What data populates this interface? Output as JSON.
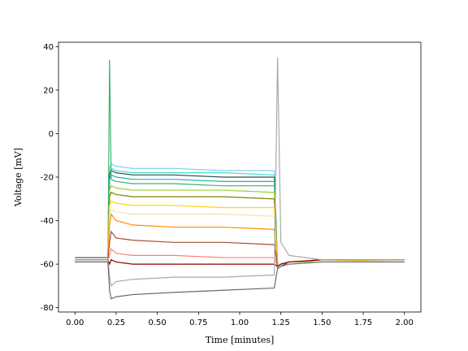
{
  "chart_data": {
    "type": "line",
    "xlabel": "Time [minutes]",
    "ylabel": "Voltage [mV]",
    "x": [
      0,
      0.2,
      0.21,
      0.22,
      0.25,
      0.35,
      0.6,
      0.9,
      1.2,
      1.21,
      1.23,
      1.25,
      1.3,
      1.5,
      2.0
    ],
    "series": [
      {
        "color": "#87ceeb",
        "values": [
          -58,
          -58,
          -16,
          -14,
          -15,
          -16,
          -16,
          -17,
          -17,
          -17,
          -61,
          -60,
          -59,
          -58,
          -58
        ]
      },
      {
        "color": "#40e0d0",
        "values": [
          -58,
          -58,
          -18,
          -16,
          -17,
          -18,
          -18,
          -18,
          -19,
          -19,
          -61,
          -60,
          -59,
          -58,
          -58
        ]
      },
      {
        "color": "#2f4f4f",
        "values": [
          -57,
          -57,
          -19,
          -17,
          -18,
          -19,
          -19,
          -20,
          -20,
          -20,
          -62,
          -61,
          -59,
          -58,
          -58
        ]
      },
      {
        "color": "#20b2aa",
        "values": [
          -58,
          -58,
          -21,
          -19,
          -20,
          -21,
          -21,
          -22,
          -22,
          -22,
          -61,
          -60,
          -59,
          -58,
          -58
        ]
      },
      {
        "color": "#3cb371",
        "values": [
          -59,
          -59,
          34,
          -21,
          -22,
          -23,
          -23,
          -24,
          -24,
          -24,
          -61,
          -60,
          -59,
          -59,
          -59
        ]
      },
      {
        "color": "#9acd32",
        "values": [
          -59,
          -59,
          -26,
          -24,
          -25,
          -26,
          -26,
          -26,
          -27,
          -27,
          -61,
          -60,
          -59,
          -59,
          -59
        ]
      },
      {
        "color": "#808000",
        "values": [
          -58,
          -58,
          -29,
          -27,
          -28,
          -29,
          -29,
          -29,
          -30,
          -30,
          -61,
          -60,
          -59,
          -58,
          -58
        ]
      },
      {
        "color": "#ffd700",
        "values": [
          -59,
          -59,
          -33,
          -31,
          -32,
          -33,
          -33,
          -34,
          -34,
          -34,
          -61,
          -60,
          -59,
          -58,
          -59
        ]
      },
      {
        "color": "#f5deb3",
        "values": [
          -58,
          -58,
          -37,
          -35,
          -36,
          -37,
          -37,
          -37,
          -38,
          -38,
          -61,
          -60,
          -59,
          -58,
          -58
        ]
      },
      {
        "color": "#ff8c00",
        "values": [
          -58,
          -58,
          -42,
          -37,
          -40,
          -42,
          -43,
          -43,
          -44,
          -44,
          -61,
          -60,
          -59,
          -58,
          -58
        ]
      },
      {
        "color": "#a0522d",
        "values": [
          -58,
          -58,
          -50,
          -45,
          -48,
          -49,
          -50,
          -50,
          -51,
          -51,
          -61,
          -60,
          -59,
          -58,
          -58
        ]
      },
      {
        "color": "#fa8072",
        "values": [
          -58,
          -58,
          -56,
          -53,
          -55,
          -56,
          -56,
          -57,
          -57,
          -57,
          -61,
          -60,
          -59,
          -58,
          -58
        ]
      },
      {
        "color": "#8b0000",
        "values": [
          -58,
          -58,
          -60,
          -58,
          -59,
          -60,
          -60,
          -60,
          -60,
          -60,
          -61,
          -60,
          -59,
          -58,
          -58
        ]
      },
      {
        "color": "#a9a9a9",
        "values": [
          -58,
          -58,
          -66,
          -70,
          -68,
          -67,
          -66,
          -66,
          -65,
          -65,
          35,
          -50,
          -56,
          -58,
          -58
        ]
      },
      {
        "color": "#696969",
        "values": [
          -59,
          -59,
          -72,
          -76,
          -75,
          -74,
          -73,
          -72,
          -71,
          -71,
          -62,
          -61,
          -60,
          -59,
          -59
        ]
      }
    ],
    "xlim": [
      -0.1,
      2.1
    ],
    "ylim": [
      -82,
      42
    ],
    "xticks": [
      {
        "value": 0,
        "label": "0.00"
      },
      {
        "value": 0.25,
        "label": "0.25"
      },
      {
        "value": 0.5,
        "label": "0.50"
      },
      {
        "value": 0.75,
        "label": "0.75"
      },
      {
        "value": 1.0,
        "label": "1.00"
      },
      {
        "value": 1.25,
        "label": "1.25"
      },
      {
        "value": 1.5,
        "label": "1.50"
      },
      {
        "value": 1.75,
        "label": "1.75"
      },
      {
        "value": 2.0,
        "label": "2.00"
      }
    ],
    "yticks": [
      -80,
      -60,
      -40,
      -20,
      0,
      20,
      40
    ]
  }
}
